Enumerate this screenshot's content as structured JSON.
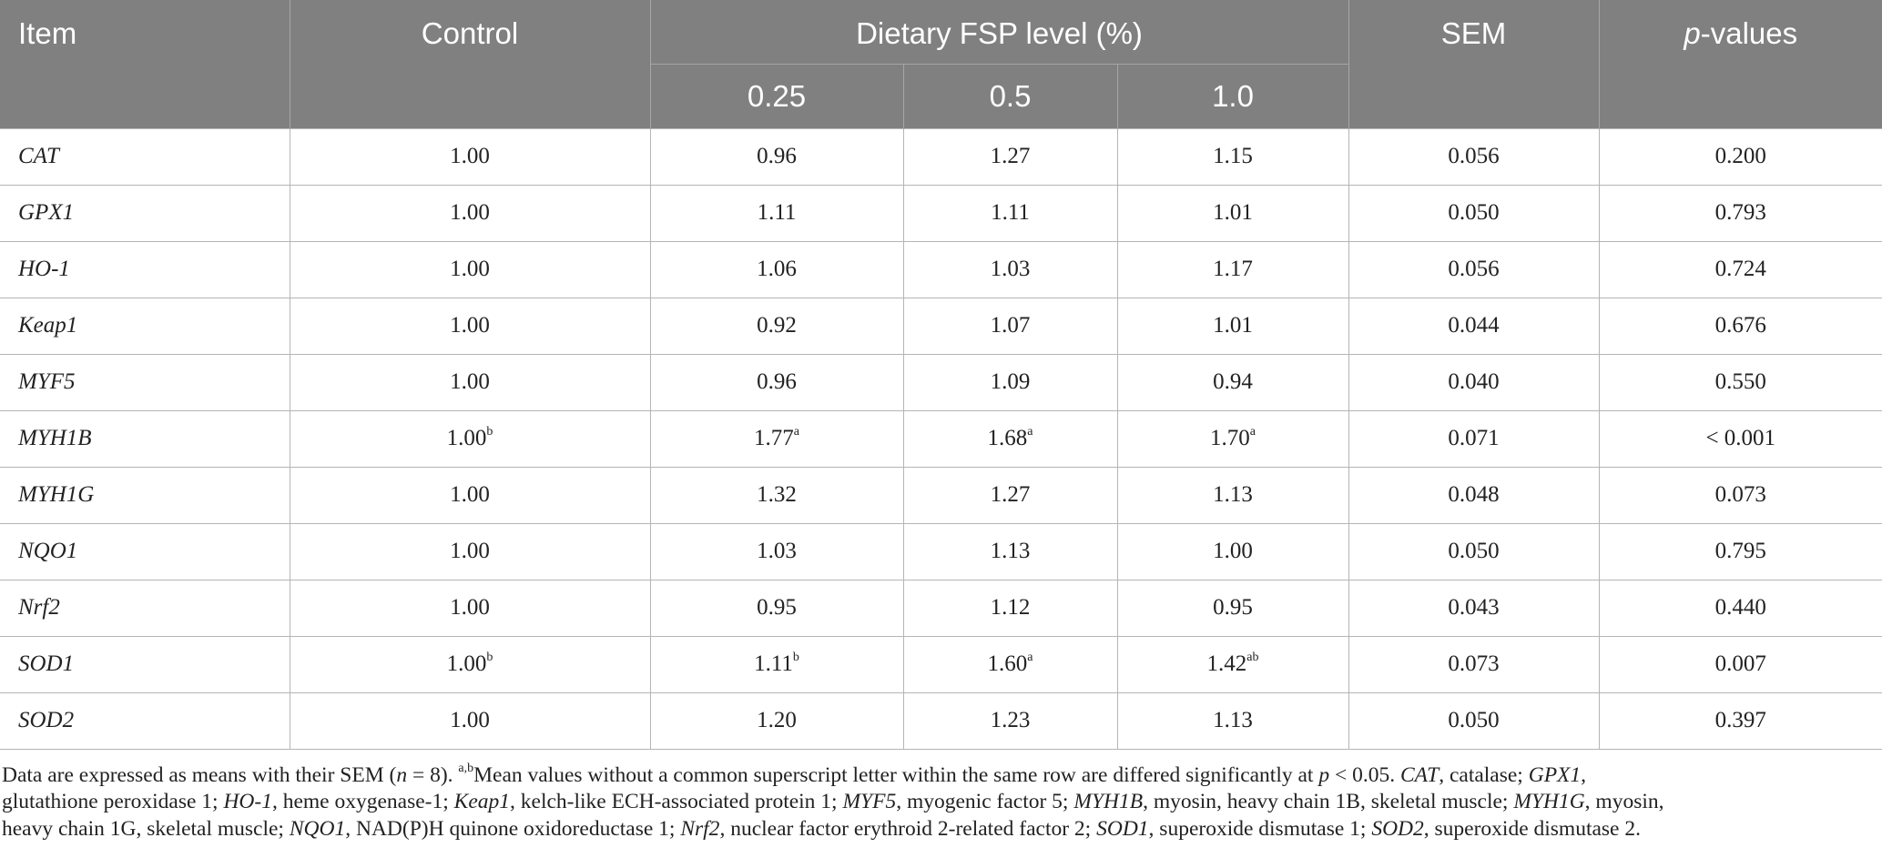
{
  "header": {
    "item": "Item",
    "control": "Control",
    "dietary_group": "Dietary FSP level (%)",
    "level_1": "0.25",
    "level_2": "0.5",
    "level_3": "1.0",
    "sem": "SEM",
    "p_italic": "p",
    "p_rest": "-values"
  },
  "rows": [
    {
      "item": "CAT",
      "control": "1.00",
      "control_sup": "",
      "v1": "0.96",
      "v1_sup": "",
      "v2": "1.27",
      "v2_sup": "",
      "v3": "1.15",
      "v3_sup": "",
      "sem": "0.056",
      "p": "0.200"
    },
    {
      "item": "GPX1",
      "control": "1.00",
      "control_sup": "",
      "v1": "1.11",
      "v1_sup": "",
      "v2": "1.11",
      "v2_sup": "",
      "v3": "1.01",
      "v3_sup": "",
      "sem": "0.050",
      "p": "0.793"
    },
    {
      "item": "HO-1",
      "control": "1.00",
      "control_sup": "",
      "v1": "1.06",
      "v1_sup": "",
      "v2": "1.03",
      "v2_sup": "",
      "v3": "1.17",
      "v3_sup": "",
      "sem": "0.056",
      "p": "0.724"
    },
    {
      "item": "Keap1",
      "control": "1.00",
      "control_sup": "",
      "v1": "0.92",
      "v1_sup": "",
      "v2": "1.07",
      "v2_sup": "",
      "v3": "1.01",
      "v3_sup": "",
      "sem": "0.044",
      "p": "0.676"
    },
    {
      "item": "MYF5",
      "control": "1.00",
      "control_sup": "",
      "v1": "0.96",
      "v1_sup": "",
      "v2": "1.09",
      "v2_sup": "",
      "v3": "0.94",
      "v3_sup": "",
      "sem": "0.040",
      "p": "0.550"
    },
    {
      "item": "MYH1B",
      "control": "1.00",
      "control_sup": "b",
      "v1": "1.77",
      "v1_sup": "a",
      "v2": "1.68",
      "v2_sup": "a",
      "v3": "1.70",
      "v3_sup": "a",
      "sem": "0.071",
      "p": "< 0.001"
    },
    {
      "item": "MYH1G",
      "control": "1.00",
      "control_sup": "",
      "v1": "1.32",
      "v1_sup": "",
      "v2": "1.27",
      "v2_sup": "",
      "v3": "1.13",
      "v3_sup": "",
      "sem": "0.048",
      "p": "0.073"
    },
    {
      "item": "NQO1",
      "control": "1.00",
      "control_sup": "",
      "v1": "1.03",
      "v1_sup": "",
      "v2": "1.13",
      "v2_sup": "",
      "v3": "1.00",
      "v3_sup": "",
      "sem": "0.050",
      "p": "0.795"
    },
    {
      "item": "Nrf2",
      "control": "1.00",
      "control_sup": "",
      "v1": "0.95",
      "v1_sup": "",
      "v2": "1.12",
      "v2_sup": "",
      "v3": "0.95",
      "v3_sup": "",
      "sem": "0.043",
      "p": "0.440"
    },
    {
      "item": "SOD1",
      "control": "1.00",
      "control_sup": "b",
      "v1": "1.11",
      "v1_sup": "b",
      "v2": "1.60",
      "v2_sup": "a",
      "v3": "1.42",
      "v3_sup": "ab",
      "sem": "0.073",
      "p": "0.007"
    },
    {
      "item": "SOD2",
      "control": "1.00",
      "control_sup": "",
      "v1": "1.20",
      "v1_sup": "",
      "v2": "1.23",
      "v2_sup": "",
      "v3": "1.13",
      "v3_sup": "",
      "sem": "0.050",
      "p": "0.397"
    }
  ],
  "footnote": [
    {
      "t": "Data are expressed as means with their SEM ("
    },
    {
      "t": "n",
      "i": true
    },
    {
      "t": " = 8). "
    },
    {
      "t": "a,b",
      "sup": true
    },
    {
      "t": "Mean values without a common superscript letter within the same row are differed significantly at "
    },
    {
      "t": "p",
      "i": true
    },
    {
      "t": " < 0.05. "
    },
    {
      "t": "CAT",
      "i": true
    },
    {
      "t": ", catalase; "
    },
    {
      "t": "GPX1",
      "i": true
    },
    {
      "t": ",",
      "br": true
    },
    {
      "t": "glutathione peroxidase 1; "
    },
    {
      "t": "HO-1",
      "i": true
    },
    {
      "t": ", heme oxygenase-1; "
    },
    {
      "t": "Keap1",
      "i": true
    },
    {
      "t": ", kelch-like ECH-associated protein 1; "
    },
    {
      "t": "MYF5",
      "i": true
    },
    {
      "t": ", myogenic factor 5; "
    },
    {
      "t": "MYH1B",
      "i": true
    },
    {
      "t": ", myosin, heavy chain 1B, skeletal muscle; "
    },
    {
      "t": "MYH1G",
      "i": true
    },
    {
      "t": ", myosin,",
      "br": true
    },
    {
      "t": "heavy chain 1G, skeletal muscle; "
    },
    {
      "t": "NQO1",
      "i": true
    },
    {
      "t": ", NAD(P)H quinone oxidoreductase 1; "
    },
    {
      "t": "Nrf2",
      "i": true
    },
    {
      "t": ", nuclear factor erythroid 2-related factor 2; "
    },
    {
      "t": "SOD1",
      "i": true
    },
    {
      "t": ", superoxide dismutase 1; "
    },
    {
      "t": "SOD2",
      "i": true
    },
    {
      "t": ", superoxide dismutase 2."
    }
  ]
}
